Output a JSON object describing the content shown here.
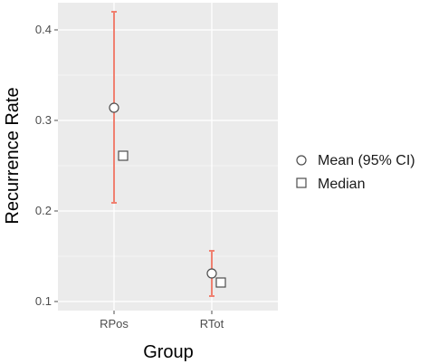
{
  "chart_data": {
    "type": "point-range",
    "xlabel": "Group",
    "ylabel": "Recurrence Rate",
    "categories": [
      "RPos",
      "RTot"
    ],
    "ylim": [
      0.09,
      0.43
    ],
    "yticks": [
      0.1,
      0.2,
      0.3,
      0.4
    ],
    "ytick_labels": [
      "0.1",
      "0.2",
      "0.3",
      "0.4"
    ],
    "grid": true,
    "series": [
      {
        "name": "Mean (95% CI)",
        "marker": "circle",
        "values": [
          0.314,
          0.131
        ],
        "ci_lower": [
          0.209,
          0.106
        ],
        "ci_upper": [
          0.42,
          0.156
        ]
      },
      {
        "name": "Median",
        "marker": "square",
        "values": [
          0.261,
          0.121
        ]
      }
    ],
    "legend": {
      "placement": "right"
    },
    "colors": {
      "panel": "#ebebeb",
      "gridline": "#ffffff",
      "error_bar": "#f08070",
      "marker_fill": "#ffffff",
      "marker_stroke": "#4d4d4d"
    }
  }
}
